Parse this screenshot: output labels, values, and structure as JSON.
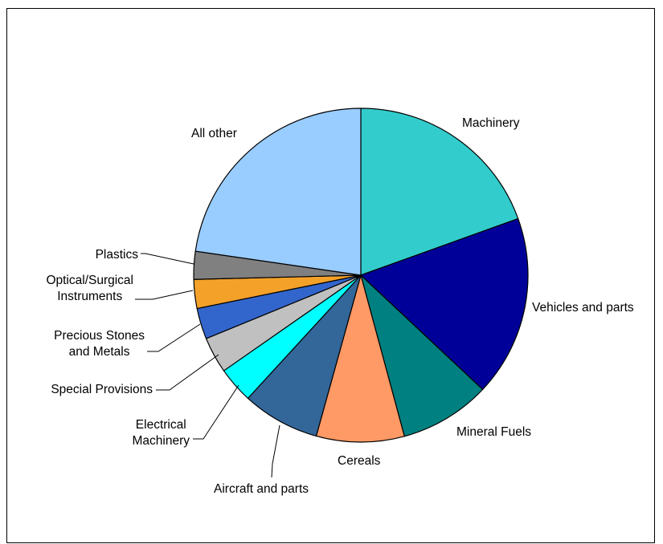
{
  "chart_data": {
    "type": "pie",
    "title": "",
    "slices": [
      {
        "label": "Machinery",
        "lines": [
          "Machinery"
        ],
        "value": 19.5,
        "color": "#33CCCC"
      },
      {
        "label": "Vehicles and parts",
        "lines": [
          "Vehicles and parts"
        ],
        "value": 17.5,
        "color": "#000099"
      },
      {
        "label": "Mineral Fuels",
        "lines": [
          "Mineral Fuels"
        ],
        "value": 8.8,
        "color": "#008080"
      },
      {
        "label": "Cereals",
        "lines": [
          "Cereals"
        ],
        "value": 8.5,
        "color": "#FF9966"
      },
      {
        "label": "Aircraft and parts",
        "lines": [
          "Aircraft and parts"
        ],
        "value": 7.5,
        "color": "#336699"
      },
      {
        "label": "Electrical Machinery",
        "lines": [
          "Electrical",
          "Machinery"
        ],
        "value": 3.5,
        "color": "#00FFFF"
      },
      {
        "label": "Special Provisions",
        "lines": [
          "Special Provisions"
        ],
        "value": 3.5,
        "color": "#C0C0C0"
      },
      {
        "label": "Precious Stones and Metals",
        "lines": [
          "Precious Stones",
          "and Metals"
        ],
        "value": 3.0,
        "color": "#3366CC"
      },
      {
        "label": "Optical/Surgical Instruments",
        "lines": [
          "Optical/Surgical",
          "Instruments"
        ],
        "value": 2.8,
        "color": "#F4A12A"
      },
      {
        "label": "Plastics",
        "lines": [
          "Plastics"
        ],
        "value": 2.7,
        "color": "#808080"
      },
      {
        "label": "All other",
        "lines": [
          "All other"
        ],
        "value": 22.7,
        "color": "#99CCFF"
      }
    ]
  }
}
